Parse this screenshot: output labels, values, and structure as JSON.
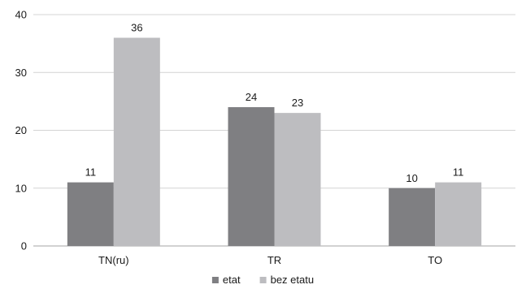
{
  "chart_data": {
    "type": "bar",
    "categories": [
      "TN(ru)",
      "TR",
      "TO"
    ],
    "series": [
      {
        "name": "etat",
        "values": [
          11,
          24,
          10
        ],
        "color": "#7f7f82"
      },
      {
        "name": "bez etatu",
        "values": [
          36,
          23,
          11
        ],
        "color": "#bdbdc0"
      }
    ],
    "ylim": [
      0,
      40
    ],
    "yticks": [
      0,
      10,
      20,
      30,
      40
    ],
    "grid": true,
    "legend_position": "bottom",
    "data_labels": true
  }
}
